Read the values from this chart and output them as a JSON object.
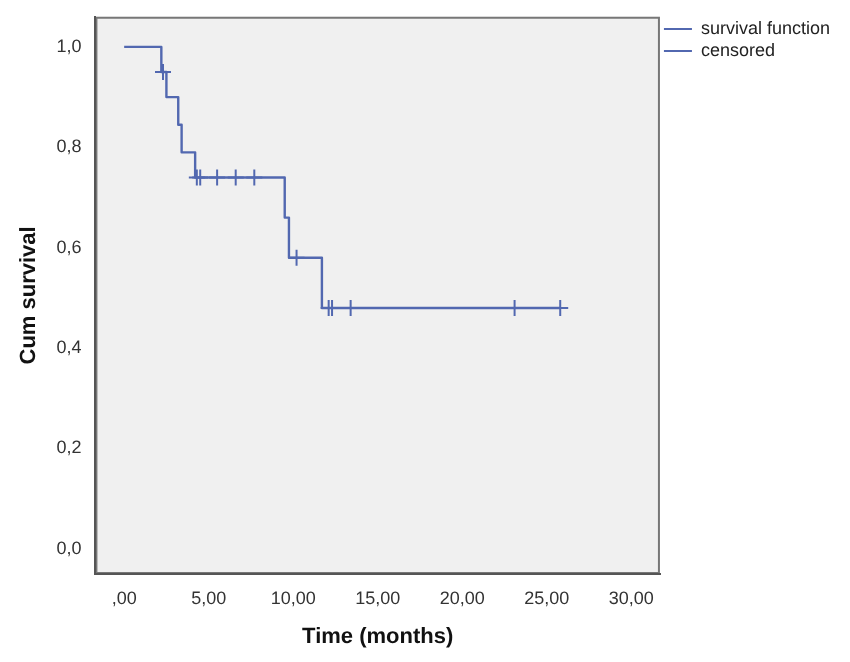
{
  "chart_data": {
    "type": "step",
    "xlabel": "Time (months)",
    "ylabel": "Cum survival",
    "xlim": [
      -1.7,
      31.7
    ],
    "ylim": [
      -0.05,
      1.06
    ],
    "xticks": [
      {
        "value": 0,
        "label": ",00"
      },
      {
        "value": 5,
        "label": "5,00"
      },
      {
        "value": 10,
        "label": "10,00"
      },
      {
        "value": 15,
        "label": "15,00"
      },
      {
        "value": 20,
        "label": "20,00"
      },
      {
        "value": 25,
        "label": "25,00"
      },
      {
        "value": 30,
        "label": "30,00"
      }
    ],
    "yticks": [
      {
        "value": 0,
        "label": "0,0"
      },
      {
        "value": 0.2,
        "label": "0,2"
      },
      {
        "value": 0.4,
        "label": "0,4"
      },
      {
        "value": 0.6,
        "label": "0,6"
      },
      {
        "value": 0.8,
        "label": "0,8"
      },
      {
        "value": 1,
        "label": "1,0"
      }
    ],
    "grid": false,
    "legend": "top right",
    "series": [
      {
        "name": "survival function",
        "type": "step",
        "color": "#5268b0",
        "x": [
          0,
          2.2,
          2.5,
          3.2,
          3.4,
          4.2,
          9.5,
          9.75,
          11.7,
          25.8
        ],
        "values": [
          1,
          0.95,
          0.9,
          0.845,
          0.79,
          0.74,
          0.66,
          0.58,
          0.48,
          0.48
        ]
      },
      {
        "name": "censored",
        "type": "scatter",
        "marker": "cross",
        "color": "#5268b0",
        "x": [
          2.3,
          4.3,
          4.5,
          5.5,
          6.6,
          7.7,
          10.2,
          12.1,
          12.3,
          13.4,
          23.1,
          25.8
        ],
        "values": [
          0.95,
          0.74,
          0.74,
          0.74,
          0.74,
          0.74,
          0.58,
          0.48,
          0.48,
          0.48,
          0.48,
          0.48
        ]
      }
    ]
  }
}
